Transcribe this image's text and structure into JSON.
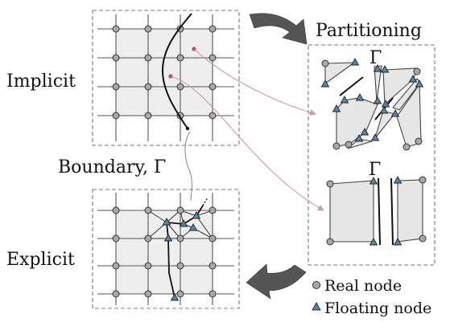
{
  "labels": {
    "implicit": "Implicit",
    "explicit": "Explicit",
    "partitioning": "Partitioning",
    "boundary": "Boundary, Γ",
    "gamma_top": "Γ",
    "gamma_bottom": "Γ",
    "legend_real": "Real node",
    "legend_floating": "Floating node"
  },
  "colors": {
    "grid_fill": "#eeeeee",
    "piece_fill": "#e6e6e6",
    "grid_line": "#555555",
    "real_node_fill": "#a8a8a8",
    "floating_node_fill": "#5a86a6",
    "boundary_curve": "#111111",
    "mapping_arrow": "#c79ca2",
    "big_arrow": "#555555",
    "dashed_border": "#777777"
  },
  "icons": {
    "real_node": "gray-circle",
    "floating_node": "blue-triangle"
  }
}
